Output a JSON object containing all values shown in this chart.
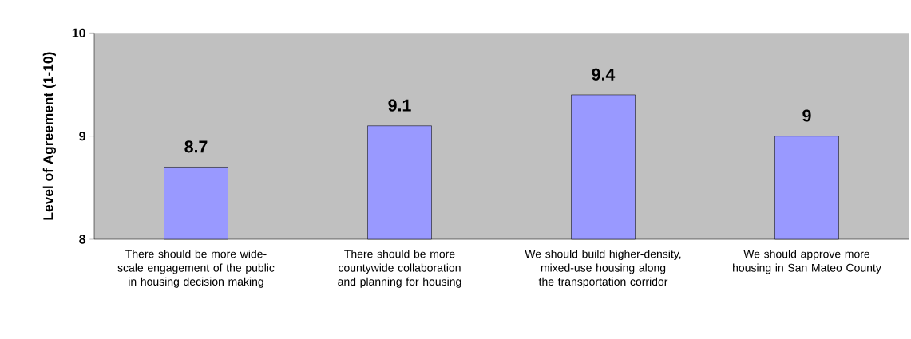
{
  "chart_data": {
    "type": "bar",
    "ylabel": "Level of Agreement (1-10)",
    "categories": [
      "There should be more wide-scale engagement of the public in housing decision making",
      "There should be more countywide collaboration and planning for housing",
      "We should build higher-density, mixed-use housing along the transportation corridor",
      "We should approve more housing in San Mateo County"
    ],
    "values": [
      8.7,
      9.1,
      9.4,
      9
    ],
    "color": "#9999ff",
    "ylim": [
      8,
      10
    ],
    "yticks": [
      8,
      9,
      10
    ],
    "grid": false,
    "data_labels": true
  }
}
